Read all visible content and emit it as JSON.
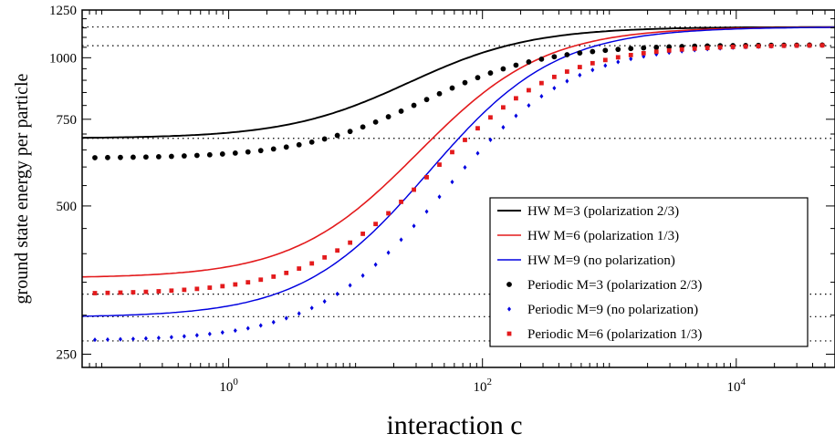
{
  "chart_data": {
    "type": "line",
    "title": "",
    "xlabel": "interaction c",
    "ylabel": "ground state energy per particle",
    "xscale": "log",
    "yscale": "log",
    "xlim": [
      0.07,
      60000
    ],
    "ylim": [
      235,
      1250
    ],
    "x_ticks": [
      {
        "value": 1,
        "base": "10",
        "exp": "0"
      },
      {
        "value": 100,
        "base": "10",
        "exp": "2"
      },
      {
        "value": 10000,
        "base": "10",
        "exp": "4"
      }
    ],
    "y_ticks": [
      250,
      500,
      750,
      1000,
      1250
    ],
    "grid": false,
    "legend_position": "bottom-right",
    "reference_lines": [
      1155,
      1058,
      686,
      331,
      298,
      266
    ],
    "series": [
      {
        "name": "HW M=3 (polarization 2/3)",
        "style": "line",
        "color": "#000000",
        "low": 686,
        "high": 1155,
        "midpoint_c": 35,
        "width": 1.9,
        "points_x": [],
        "points_y": []
      },
      {
        "name": "HW M=6 (polarization 1/3)",
        "style": "line",
        "color": "#e31a1c",
        "low": 357,
        "high": 1155,
        "midpoint_c": 60,
        "width": 1.6,
        "points_x": [],
        "points_y": []
      },
      {
        "name": "HW M=9 (no polarization)",
        "style": "line",
        "color": "#0000e0",
        "low": 297,
        "high": 1155,
        "midpoint_c": 80,
        "width": 1.45,
        "points_x": [],
        "points_y": []
      },
      {
        "name": "Periodic M=3 (polarization 2/3)",
        "style": "circle",
        "color": "#000000",
        "low": 625,
        "high": 1062,
        "midpoint_c": 45,
        "width": 1.9,
        "points_x": [],
        "points_y": []
      },
      {
        "name": "Periodic M=9 (no polarization)",
        "style": "diamond",
        "color": "#0000e0",
        "low": 266,
        "high": 1062,
        "midpoint_c": 105,
        "width": 1.45,
        "points_x": [],
        "points_y": []
      },
      {
        "name": "Periodic M=6 (polarization 1/3)",
        "style": "square",
        "color": "#e31a1c",
        "low": 331,
        "high": 1062,
        "midpoint_c": 80,
        "width": 1.6,
        "points_x": [],
        "points_y": []
      }
    ]
  }
}
